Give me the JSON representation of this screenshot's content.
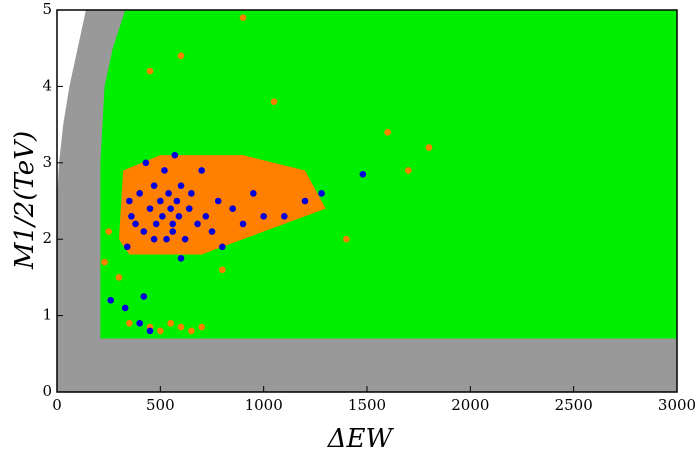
{
  "chart_data": {
    "type": "scatter",
    "x_label": "ΔEW",
    "y_label": "M1/2(TeV)",
    "xlim": [
      0,
      3000
    ],
    "ylim": [
      0,
      5
    ],
    "xticks": [
      0,
      500,
      1000,
      1500,
      2000,
      2500,
      3000
    ],
    "yticks": [
      0,
      1,
      2,
      3,
      4,
      5
    ],
    "series": [
      {
        "kind": "region",
        "color": "#999999",
        "x": [
          0,
          3000,
          3000,
          140,
          100,
          60,
          30,
          10,
          0
        ],
        "y": [
          0,
          0,
          5,
          5,
          4.5,
          4,
          3.5,
          3,
          2.5
        ]
      },
      {
        "kind": "region",
        "color": "#00ee00",
        "x": [
          210,
          3000,
          3000,
          330,
          270,
          230,
          210
        ],
        "y": [
          0.7,
          0.7,
          5,
          5,
          4.5,
          4,
          3
        ]
      },
      {
        "kind": "region",
        "color": "#ff8000",
        "x": [
          300,
          350,
          700,
          1000,
          1300,
          1200,
          900,
          500,
          320
        ],
        "y": [
          2.0,
          1.8,
          1.8,
          2.1,
          2.4,
          2.9,
          3.1,
          3.1,
          2.9
        ]
      },
      {
        "kind": "points",
        "color": "#ff8000",
        "x": [
          230,
          300,
          350,
          450,
          500,
          550,
          600,
          650,
          700,
          250,
          800,
          1400,
          1600,
          1700,
          900,
          1050,
          1800,
          450,
          600
        ],
        "y": [
          1.7,
          1.5,
          0.9,
          0.85,
          0.8,
          0.9,
          0.85,
          0.8,
          0.85,
          2.1,
          1.6,
          2.0,
          3.4,
          2.9,
          4.9,
          3.8,
          3.2,
          4.2,
          4.4
        ]
      },
      {
        "kind": "points",
        "color": "#0000dd",
        "x": [
          260,
          330,
          340,
          420,
          450,
          400,
          350,
          360,
          380,
          400,
          420,
          450,
          470,
          480,
          500,
          510,
          520,
          530,
          540,
          550,
          560,
          570,
          580,
          590,
          600,
          620,
          640,
          650,
          680,
          700,
          720,
          750,
          780,
          800,
          850,
          900,
          950,
          1000,
          1100,
          1200,
          1280,
          1480,
          560,
          600,
          430,
          470
        ],
        "y": [
          1.2,
          1.1,
          1.9,
          1.25,
          0.8,
          0.9,
          2.5,
          2.3,
          2.2,
          2.6,
          2.1,
          2.4,
          2.7,
          2.2,
          2.5,
          2.3,
          2.9,
          2.0,
          2.6,
          2.4,
          2.2,
          3.1,
          2.5,
          2.3,
          2.7,
          2.0,
          2.4,
          2.6,
          2.2,
          2.9,
          2.3,
          2.1,
          2.5,
          1.9,
          2.4,
          2.2,
          2.6,
          2.3,
          2.3,
          2.5,
          2.6,
          2.85,
          2.1,
          1.75,
          3.0,
          2.0
        ]
      }
    ]
  }
}
